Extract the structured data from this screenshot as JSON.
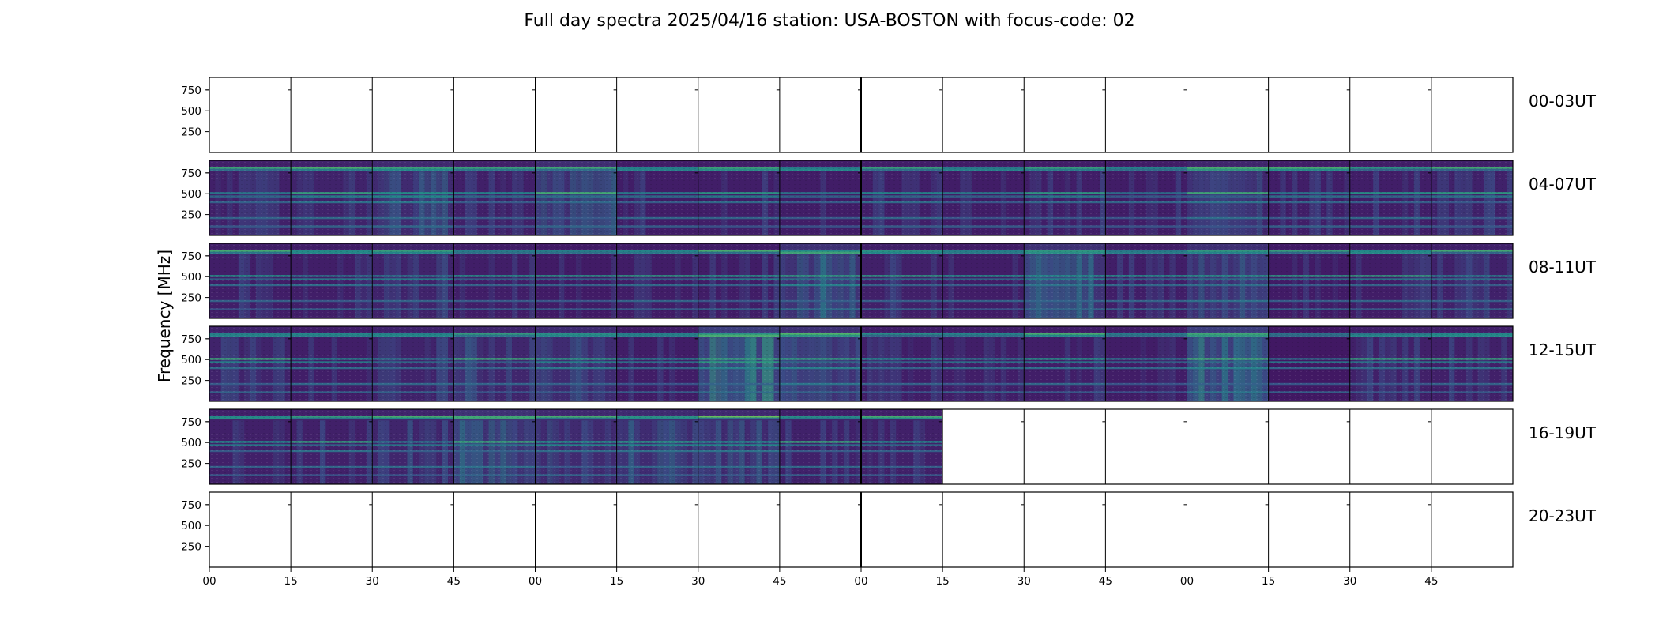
{
  "chart_data": {
    "type": "heatmap",
    "title": "Full day spectra 2025/04/16 station: USA-BOSTON with focus-code: 02",
    "ylabel": "Frequency [MHz]",
    "xlabel": "",
    "y_ticks": [
      "750",
      "500",
      "250"
    ],
    "y_tick_values": [
      750,
      500,
      250
    ],
    "ylim": [
      0,
      900
    ],
    "x_ticks": [
      "00",
      "15",
      "30",
      "45",
      "00",
      "15",
      "30",
      "45",
      "00",
      "15",
      "30",
      "45",
      "00",
      "15",
      "30",
      "45"
    ],
    "minutes_per_panel": 15,
    "panels_per_row": 16,
    "colormap": [
      "#440154",
      "#3b528b",
      "#21918c",
      "#5ec962",
      "#fde725"
    ],
    "rows": [
      {
        "label": "00-03UT",
        "panels_with_data": 0,
        "panel_intensity": []
      },
      {
        "label": "04-07UT",
        "panels_with_data": 16,
        "panel_intensity": [
          0.18,
          0.22,
          0.3,
          0.18,
          0.35,
          0.14,
          0.16,
          0.14,
          0.16,
          0.14,
          0.16,
          0.15,
          0.26,
          0.16,
          0.16,
          0.2
        ]
      },
      {
        "label": "08-11UT",
        "panels_with_data": 16,
        "panel_intensity": [
          0.16,
          0.16,
          0.22,
          0.16,
          0.12,
          0.14,
          0.14,
          0.4,
          0.18,
          0.14,
          0.4,
          0.16,
          0.38,
          0.12,
          0.14,
          0.2
        ]
      },
      {
        "label": "12-15UT",
        "panels_with_data": 16,
        "panel_intensity": [
          0.22,
          0.16,
          0.22,
          0.26,
          0.32,
          0.15,
          0.55,
          0.4,
          0.16,
          0.16,
          0.16,
          0.14,
          0.55,
          0.08,
          0.18,
          0.18
        ]
      },
      {
        "label": "16-19UT",
        "panels_with_data": 9,
        "panel_intensity": [
          0.18,
          0.18,
          0.24,
          0.4,
          0.3,
          0.32,
          0.3,
          0.2,
          0.18
        ]
      },
      {
        "label": "20-23UT",
        "panels_with_data": 0,
        "panel_intensity": []
      }
    ]
  }
}
